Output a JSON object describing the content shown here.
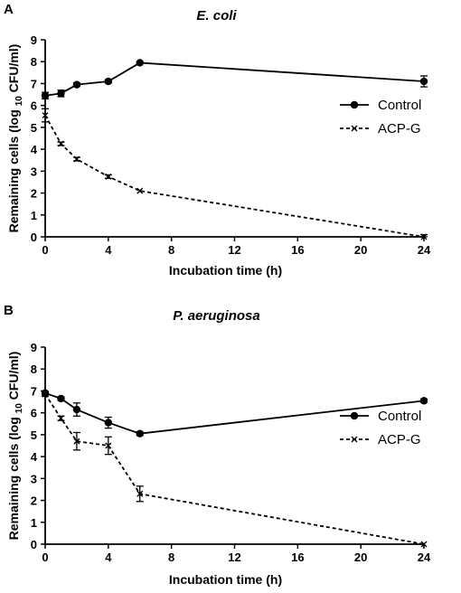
{
  "chart_data": [
    {
      "type": "line",
      "panel": "A",
      "title": "E. coli",
      "xlabel": "Incubation time (h)",
      "ylabel_main": "Remaining cells (log",
      "ylabel_sub": "10",
      "ylabel_end": "CFU/ml)",
      "xlim": [
        0,
        24
      ],
      "ylim": [
        0,
        9
      ],
      "xticks": [
        "0",
        "4",
        "8",
        "12",
        "16",
        "20",
        "24"
      ],
      "yticks": [
        "0",
        "1",
        "2",
        "3",
        "4",
        "5",
        "6",
        "7",
        "8",
        "9"
      ],
      "grid": false,
      "legend_position": "right",
      "series": [
        {
          "name": "Control",
          "style": "solid",
          "marker": "circle",
          "x": [
            0,
            1,
            2,
            4,
            6,
            24
          ],
          "y": [
            6.45,
            6.55,
            6.95,
            7.1,
            7.95,
            7.1
          ],
          "err": [
            0.15,
            0.15,
            0.08,
            0.08,
            0.05,
            0.25
          ]
        },
        {
          "name": "ACP-G",
          "style": "dashed",
          "marker": "x",
          "x": [
            0,
            1,
            2,
            4,
            6,
            24
          ],
          "y": [
            5.55,
            4.25,
            3.55,
            2.75,
            2.1,
            0.0
          ],
          "err": [
            0.3,
            0.08,
            0.08,
            0.08,
            0.05,
            0.1
          ]
        }
      ]
    },
    {
      "type": "line",
      "panel": "B",
      "title": "P. aeruginosa",
      "xlabel": "Incubation time (h)",
      "ylabel_main": "Remaining cells (log",
      "ylabel_sub": "10",
      "ylabel_end": "CFU/ml)",
      "xlim": [
        0,
        24
      ],
      "ylim": [
        0,
        9
      ],
      "xticks": [
        "0",
        "4",
        "8",
        "12",
        "16",
        "20",
        "24"
      ],
      "yticks": [
        "0",
        "1",
        "2",
        "3",
        "4",
        "5",
        "6",
        "7",
        "8",
        "9"
      ],
      "grid": false,
      "legend_position": "right",
      "series": [
        {
          "name": "Control",
          "style": "solid",
          "marker": "circle",
          "x": [
            0,
            1,
            2,
            4,
            6,
            24
          ],
          "y": [
            6.9,
            6.65,
            6.15,
            5.55,
            5.05,
            6.55
          ],
          "err": [
            0.08,
            0.08,
            0.3,
            0.25,
            0.08,
            0.08
          ]
        },
        {
          "name": "ACP-G",
          "style": "dashed",
          "marker": "x",
          "x": [
            0,
            1,
            2,
            4,
            6,
            24
          ],
          "y": [
            6.85,
            5.75,
            4.7,
            4.5,
            2.3,
            0.0
          ],
          "err": [
            0.1,
            0.1,
            0.4,
            0.4,
            0.35,
            0.05
          ]
        }
      ]
    }
  ]
}
